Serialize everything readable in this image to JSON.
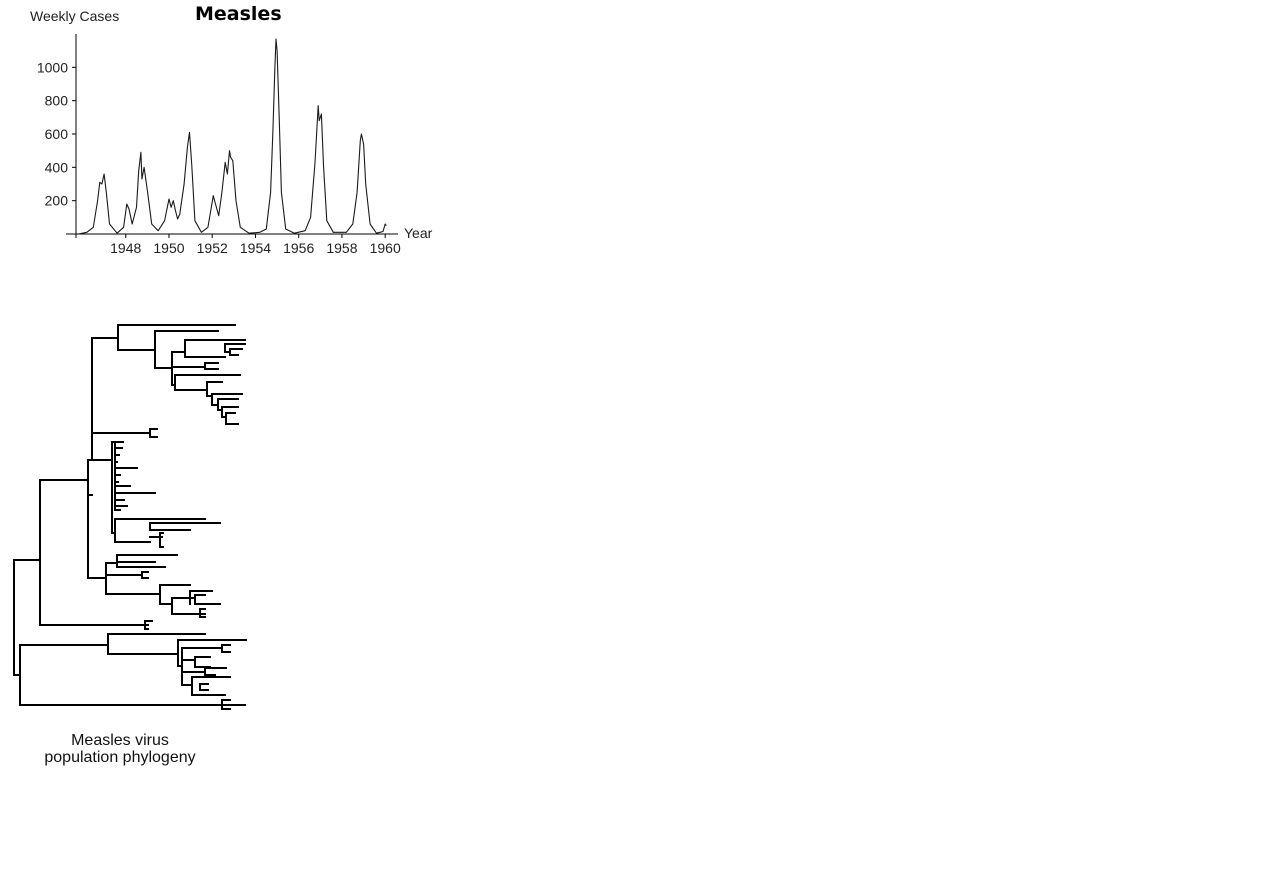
{
  "chart_data": {
    "type": "line",
    "title": "Measles",
    "ylabel": "Weekly Cases",
    "xlabel": "Year",
    "xlim": [
      1945.7,
      1960.5
    ],
    "ylim": [
      0,
      1200
    ],
    "xticks": [
      "1948",
      "1950",
      "1952",
      "1954",
      "1956",
      "1958",
      "1960"
    ],
    "yticks": [
      "200",
      "400",
      "600",
      "800",
      "1000"
    ],
    "grid": false,
    "series": [
      {
        "values": [
          [
            1945.8,
            0
          ],
          [
            1946.2,
            10
          ],
          [
            1946.5,
            40
          ],
          [
            1946.7,
            200
          ],
          [
            1946.8,
            310
          ],
          [
            1946.9,
            300
          ],
          [
            1947.0,
            360
          ],
          [
            1947.1,
            250
          ],
          [
            1947.25,
            60
          ],
          [
            1947.6,
            5
          ],
          [
            1947.9,
            40
          ],
          [
            1948.05,
            180
          ],
          [
            1948.15,
            150
          ],
          [
            1948.3,
            60
          ],
          [
            1948.5,
            160
          ],
          [
            1948.6,
            380
          ],
          [
            1948.7,
            490
          ],
          [
            1948.75,
            330
          ],
          [
            1948.85,
            400
          ],
          [
            1949.0,
            260
          ],
          [
            1949.2,
            60
          ],
          [
            1949.5,
            20
          ],
          [
            1949.8,
            80
          ],
          [
            1950.0,
            210
          ],
          [
            1950.1,
            160
          ],
          [
            1950.2,
            200
          ],
          [
            1950.3,
            140
          ],
          [
            1950.4,
            90
          ],
          [
            1950.5,
            120
          ],
          [
            1950.7,
            300
          ],
          [
            1950.85,
            520
          ],
          [
            1950.95,
            610
          ],
          [
            1951.05,
            420
          ],
          [
            1951.2,
            80
          ],
          [
            1951.5,
            10
          ],
          [
            1951.8,
            40
          ],
          [
            1952.05,
            230
          ],
          [
            1952.15,
            180
          ],
          [
            1952.3,
            110
          ],
          [
            1952.45,
            250
          ],
          [
            1952.6,
            430
          ],
          [
            1952.7,
            360
          ],
          [
            1952.8,
            500
          ],
          [
            1952.85,
            460
          ],
          [
            1952.95,
            440
          ],
          [
            1953.1,
            200
          ],
          [
            1953.3,
            40
          ],
          [
            1953.7,
            5
          ],
          [
            1954.2,
            10
          ],
          [
            1954.5,
            30
          ],
          [
            1954.7,
            250
          ],
          [
            1954.8,
            600
          ],
          [
            1954.9,
            1000
          ],
          [
            1954.95,
            1170
          ],
          [
            1955.0,
            1100
          ],
          [
            1955.1,
            700
          ],
          [
            1955.2,
            250
          ],
          [
            1955.4,
            30
          ],
          [
            1955.8,
            5
          ],
          [
            1956.3,
            20
          ],
          [
            1956.55,
            100
          ],
          [
            1956.75,
            420
          ],
          [
            1956.9,
            770
          ],
          [
            1956.95,
            680
          ],
          [
            1957.05,
            720
          ],
          [
            1957.15,
            400
          ],
          [
            1957.3,
            80
          ],
          [
            1957.6,
            10
          ],
          [
            1958.2,
            10
          ],
          [
            1958.5,
            60
          ],
          [
            1958.7,
            250
          ],
          [
            1958.85,
            560
          ],
          [
            1958.9,
            600
          ],
          [
            1959.0,
            540
          ],
          [
            1959.1,
            300
          ],
          [
            1959.3,
            60
          ],
          [
            1959.6,
            5
          ],
          [
            1959.9,
            15
          ],
          [
            1960.0,
            60
          ],
          [
            1960.05,
            50
          ]
        ]
      }
    ]
  },
  "figure": {
    "caption_line1": "Measles virus",
    "caption_line2": "population phylogeny"
  },
  "phylogeny": {
    "segments": [
      [
        14,
        560,
        14,
        675
      ],
      [
        14,
        560,
        40,
        560
      ],
      [
        14,
        675,
        20,
        675
      ],
      [
        40,
        480,
        40,
        625
      ],
      [
        40,
        480,
        88,
        480
      ],
      [
        40,
        625,
        148,
        625
      ],
      [
        88,
        460,
        88,
        578
      ],
      [
        88,
        460,
        92,
        460
      ],
      [
        88,
        578,
        106,
        578
      ],
      [
        88,
        495,
        92,
        495
      ],
      [
        92,
        338,
        92,
        460
      ],
      [
        92,
        338,
        118,
        338
      ],
      [
        92,
        460,
        112,
        460
      ],
      [
        118,
        325,
        118,
        350
      ],
      [
        118,
        325,
        235,
        325
      ],
      [
        118,
        350,
        155,
        350
      ],
      [
        155,
        331,
        155,
        368
      ],
      [
        155,
        331,
        218,
        331
      ],
      [
        155,
        368,
        172,
        368
      ],
      [
        172,
        352,
        172,
        385
      ],
      [
        172,
        352,
        185,
        352
      ],
      [
        172,
        385,
        175,
        385
      ],
      [
        185,
        340,
        185,
        357
      ],
      [
        185,
        340,
        245,
        340
      ],
      [
        185,
        357,
        225,
        357
      ],
      [
        225,
        344,
        225,
        352
      ],
      [
        225,
        344,
        245,
        344
      ],
      [
        225,
        352,
        230,
        352
      ],
      [
        230,
        349,
        230,
        355
      ],
      [
        230,
        349,
        242,
        349
      ],
      [
        230,
        355,
        238,
        355
      ],
      [
        172,
        367,
        205,
        367
      ],
      [
        205,
        363,
        205,
        369
      ],
      [
        205,
        363,
        218,
        363
      ],
      [
        205,
        369,
        218,
        369
      ],
      [
        175,
        375,
        175,
        390
      ],
      [
        175,
        375,
        240,
        375
      ],
      [
        175,
        390,
        207,
        390
      ],
      [
        207,
        382,
        207,
        396
      ],
      [
        207,
        382,
        222,
        382
      ],
      [
        207,
        396,
        212,
        396
      ],
      [
        212,
        394,
        212,
        405
      ],
      [
        212,
        394,
        242,
        394
      ],
      [
        212,
        405,
        218,
        405
      ],
      [
        218,
        399,
        218,
        410
      ],
      [
        218,
        399,
        238,
        399
      ],
      [
        218,
        410,
        222,
        410
      ],
      [
        222,
        407,
        222,
        417
      ],
      [
        222,
        407,
        238,
        407
      ],
      [
        222,
        417,
        226,
        417
      ],
      [
        226,
        413,
        226,
        424
      ],
      [
        226,
        413,
        235,
        413
      ],
      [
        226,
        424,
        238,
        424
      ],
      [
        92,
        433,
        150,
        433
      ],
      [
        150,
        429,
        150,
        437
      ],
      [
        150,
        429,
        157,
        429
      ],
      [
        150,
        437,
        157,
        437
      ],
      [
        112,
        442,
        112,
        533
      ],
      [
        112,
        442,
        115,
        442
      ],
      [
        112,
        533,
        115,
        533
      ],
      [
        115,
        442,
        115,
        510
      ],
      [
        115,
        442,
        123,
        442
      ],
      [
        115,
        510,
        120,
        510
      ],
      [
        115,
        448,
        122,
        448
      ],
      [
        115,
        455,
        119,
        455
      ],
      [
        115,
        462,
        117,
        462
      ],
      [
        115,
        468,
        137,
        468
      ],
      [
        115,
        475,
        120,
        475
      ],
      [
        115,
        482,
        118,
        482
      ],
      [
        115,
        486,
        130,
        486
      ],
      [
        115,
        493,
        155,
        493
      ],
      [
        115,
        500,
        124,
        500
      ],
      [
        115,
        506,
        127,
        506
      ],
      [
        115,
        519,
        115,
        542
      ],
      [
        115,
        519,
        205,
        519
      ],
      [
        115,
        542,
        150,
        542
      ],
      [
        150,
        523,
        150,
        530
      ],
      [
        150,
        523,
        220,
        523
      ],
      [
        150,
        530,
        190,
        530
      ],
      [
        150,
        537,
        162,
        537
      ],
      [
        160,
        533,
        160,
        547
      ],
      [
        160,
        533,
        163,
        533
      ],
      [
        160,
        547,
        163,
        547
      ],
      [
        106,
        563,
        106,
        594
      ],
      [
        106,
        563,
        117,
        563
      ],
      [
        106,
        594,
        160,
        594
      ],
      [
        117,
        555,
        117,
        567
      ],
      [
        117,
        555,
        177,
        555
      ],
      [
        117,
        567,
        165,
        567
      ],
      [
        117,
        562,
        155,
        562
      ],
      [
        106,
        575,
        142,
        575
      ],
      [
        142,
        572,
        142,
        578
      ],
      [
        142,
        572,
        148,
        572
      ],
      [
        142,
        578,
        148,
        578
      ],
      [
        160,
        585,
        160,
        604
      ],
      [
        160,
        585,
        190,
        585
      ],
      [
        160,
        604,
        172,
        604
      ],
      [
        190,
        591,
        190,
        604
      ],
      [
        190,
        591,
        212,
        591
      ],
      [
        190,
        598,
        195,
        598
      ],
      [
        195,
        595,
        195,
        604
      ],
      [
        195,
        595,
        205,
        595
      ],
      [
        195,
        604,
        220,
        604
      ],
      [
        172,
        598,
        172,
        614
      ],
      [
        172,
        598,
        190,
        598
      ],
      [
        172,
        614,
        205,
        614
      ],
      [
        200,
        609,
        200,
        617
      ],
      [
        200,
        609,
        205,
        609
      ],
      [
        200,
        617,
        205,
        617
      ],
      [
        145,
        621,
        145,
        629
      ],
      [
        145,
        621,
        152,
        621
      ],
      [
        145,
        629,
        148,
        629
      ],
      [
        20,
        645,
        20,
        705
      ],
      [
        20,
        645,
        108,
        645
      ],
      [
        20,
        705,
        245,
        705
      ],
      [
        108,
        634,
        108,
        654
      ],
      [
        108,
        634,
        205,
        634
      ],
      [
        108,
        654,
        178,
        654
      ],
      [
        178,
        640,
        178,
        666
      ],
      [
        178,
        640,
        246,
        640
      ],
      [
        178,
        666,
        182,
        666
      ],
      [
        182,
        648,
        182,
        685
      ],
      [
        182,
        648,
        222,
        648
      ],
      [
        182,
        685,
        192,
        685
      ],
      [
        222,
        645,
        222,
        652
      ],
      [
        222,
        645,
        230,
        645
      ],
      [
        222,
        652,
        230,
        652
      ],
      [
        182,
        660,
        195,
        660
      ],
      [
        195,
        657,
        195,
        667
      ],
      [
        195,
        657,
        210,
        657
      ],
      [
        195,
        667,
        210,
        667
      ],
      [
        182,
        672,
        205,
        672
      ],
      [
        205,
        668,
        205,
        675
      ],
      [
        205,
        668,
        226,
        668
      ],
      [
        205,
        675,
        215,
        675
      ],
      [
        192,
        677,
        192,
        695
      ],
      [
        192,
        677,
        230,
        677
      ],
      [
        192,
        695,
        225,
        695
      ],
      [
        200,
        684,
        200,
        690
      ],
      [
        200,
        684,
        208,
        684
      ],
      [
        200,
        690,
        208,
        690
      ],
      [
        222,
        700,
        222,
        709
      ],
      [
        222,
        700,
        230,
        700
      ],
      [
        222,
        709,
        230,
        709
      ]
    ]
  }
}
